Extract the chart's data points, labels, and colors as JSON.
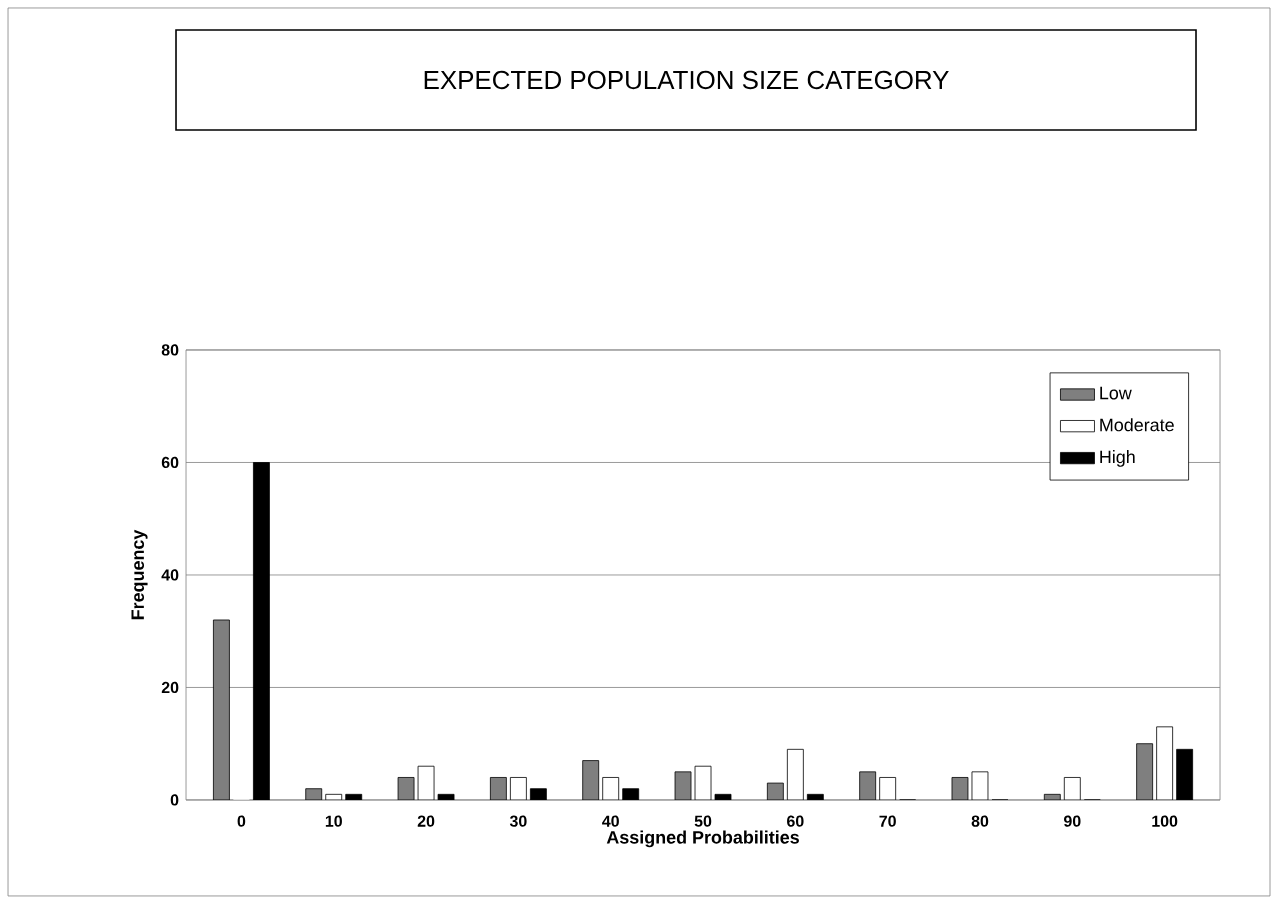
{
  "chart_data": {
    "type": "bar",
    "title": "EXPECTED POPULATION SIZE CATEGORY",
    "xlabel": "Assigned Probabilities",
    "ylabel": "Frequency",
    "categories": [
      "0",
      "10",
      "20",
      "30",
      "40",
      "50",
      "60",
      "70",
      "80",
      "90",
      "100"
    ],
    "series": [
      {
        "name": "Low",
        "color": "#7f7f7f",
        "values": [
          32,
          2,
          4,
          4,
          7,
          5,
          3,
          5,
          4,
          1,
          10
        ]
      },
      {
        "name": "Moderate",
        "color": "#ffffff",
        "values": [
          0,
          1,
          6,
          4,
          4,
          6,
          9,
          4,
          5,
          4,
          13
        ]
      },
      {
        "name": "High",
        "color": "#000000",
        "values": [
          60,
          1,
          1,
          2,
          2,
          1,
          1,
          0,
          0,
          0,
          9
        ]
      }
    ],
    "ylim": [
      0,
      80
    ],
    "yticks": [
      0,
      20,
      40,
      60,
      80
    ],
    "grid": "y",
    "legend": "top right"
  }
}
